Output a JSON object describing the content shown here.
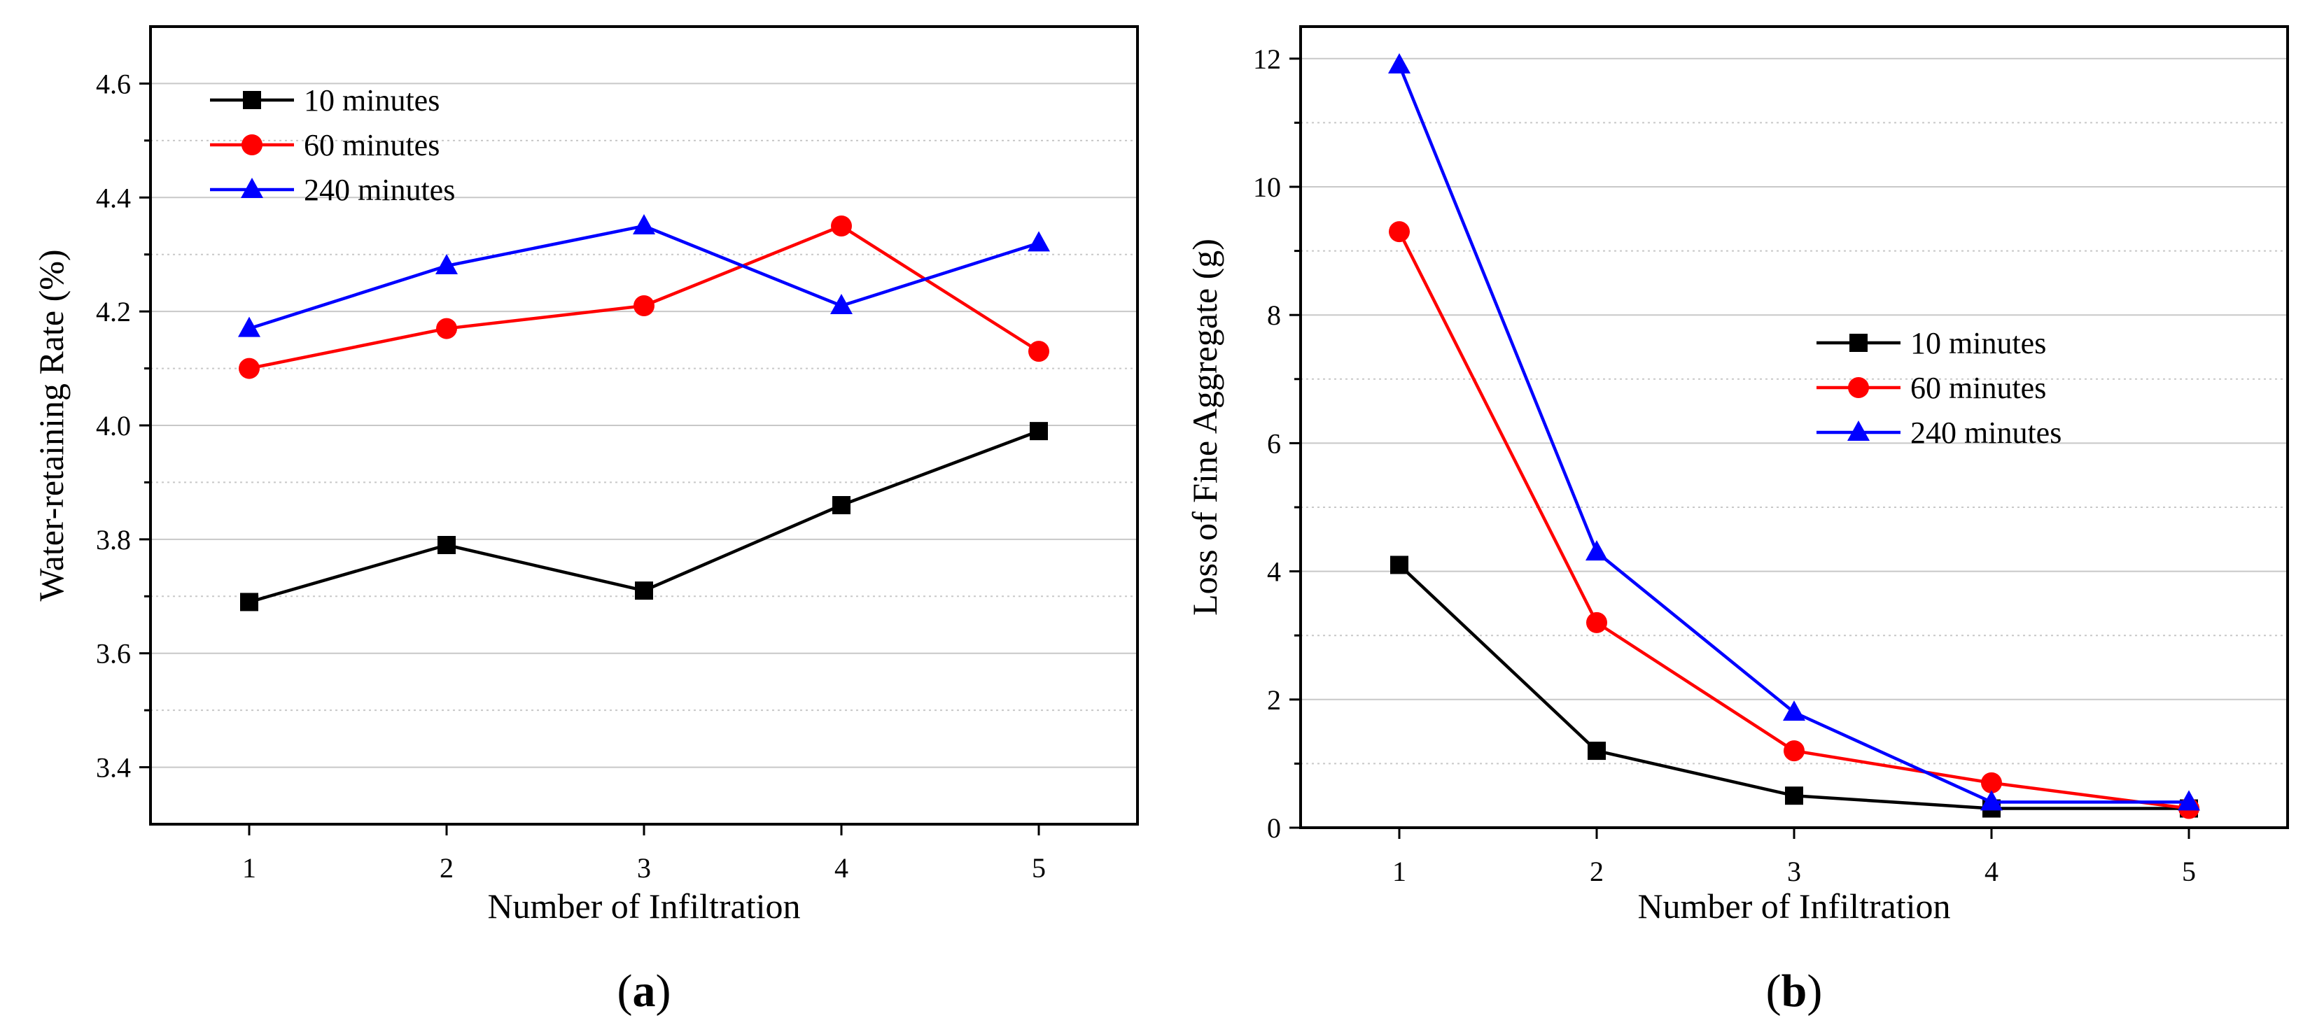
{
  "chart_data": [
    {
      "id": "a",
      "type": "line",
      "panel_label": "a",
      "xlabel": "Number of Infiltration",
      "ylabel": "Water-retaining Rate  (%)",
      "xlim": [
        0.5,
        5.5
      ],
      "ylim": [
        3.3,
        4.7
      ],
      "xticks": [
        1,
        2,
        3,
        4,
        5
      ],
      "yticks": [
        3.4,
        3.6,
        3.8,
        4.0,
        4.2,
        4.4,
        4.6
      ],
      "yminor": [
        3.5,
        3.7,
        3.9,
        4.1,
        4.3,
        4.5
      ],
      "ytick_labels": [
        "3.4",
        "3.6",
        "3.8",
        "4.0",
        "4.2",
        "4.4",
        "4.6"
      ],
      "xtick_labels": [
        "1",
        "2",
        "3",
        "4",
        "5"
      ],
      "grid": true,
      "legend_position": "top-left",
      "x": [
        1,
        2,
        3,
        4,
        5
      ],
      "series": [
        {
          "name": "10 minutes",
          "marker": "square",
          "color": "#000000",
          "values": [
            3.69,
            3.79,
            3.71,
            3.86,
            3.99
          ]
        },
        {
          "name": "60 minutes",
          "marker": "circle",
          "color": "#ff0000",
          "values": [
            4.1,
            4.17,
            4.21,
            4.35,
            4.13
          ]
        },
        {
          "name": "240 minutes",
          "marker": "triangle",
          "color": "#0000ff",
          "values": [
            4.17,
            4.28,
            4.35,
            4.21,
            4.32
          ]
        }
      ]
    },
    {
      "id": "b",
      "type": "line",
      "panel_label": "b",
      "xlabel": "Number of Infiltration",
      "ylabel": "Loss of  Fine Aggregate  (g)",
      "xlim": [
        0.5,
        5.5
      ],
      "ylim": [
        0,
        12.5
      ],
      "xticks": [
        1,
        2,
        3,
        4,
        5
      ],
      "yticks": [
        0,
        2,
        4,
        6,
        8,
        10,
        12
      ],
      "yminor": [
        1,
        3,
        5,
        7,
        9,
        11
      ],
      "ytick_labels": [
        "0",
        "2",
        "4",
        "6",
        "8",
        "10",
        "12"
      ],
      "xtick_labels": [
        "1",
        "2",
        "3",
        "4",
        "5"
      ],
      "grid": true,
      "legend_position": "center-right",
      "x": [
        1,
        2,
        3,
        4,
        5
      ],
      "series": [
        {
          "name": "10 minutes",
          "marker": "square",
          "color": "#000000",
          "values": [
            4.1,
            1.2,
            0.5,
            0.3,
            0.3
          ]
        },
        {
          "name": "60 minutes",
          "marker": "circle",
          "color": "#ff0000",
          "values": [
            9.3,
            3.2,
            1.2,
            0.7,
            0.3
          ]
        },
        {
          "name": "240 minutes",
          "marker": "triangle",
          "color": "#0000ff",
          "values": [
            11.9,
            4.3,
            1.8,
            0.4,
            0.4
          ]
        }
      ]
    }
  ]
}
